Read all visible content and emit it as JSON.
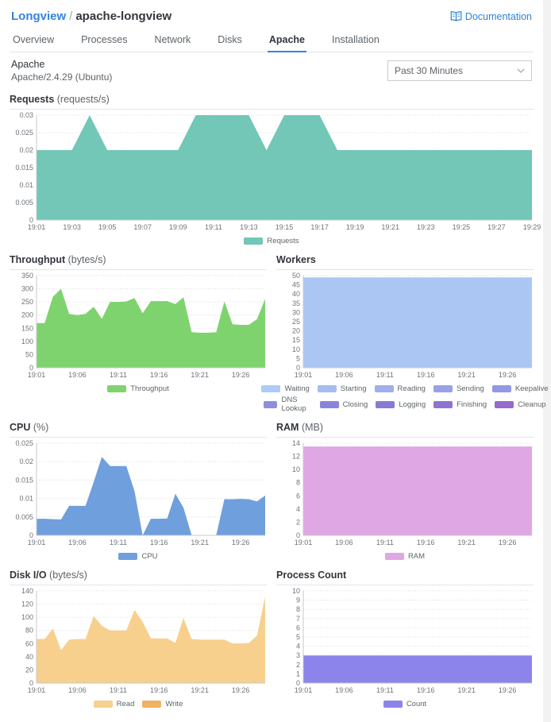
{
  "header": {
    "breadcrumb": {
      "root": "Longview",
      "separator": "/",
      "current": "apache-longview"
    },
    "documentation_label": "Documentation"
  },
  "tabs": [
    {
      "label": "Overview",
      "active": false
    },
    {
      "label": "Processes",
      "active": false
    },
    {
      "label": "Network",
      "active": false
    },
    {
      "label": "Disks",
      "active": false
    },
    {
      "label": "Apache",
      "active": true
    },
    {
      "label": "Installation",
      "active": false
    }
  ],
  "section": {
    "title": "Apache",
    "subtitle": "Apache/2.4.29 (Ubuntu)"
  },
  "time_range": {
    "value": "Past 30 Minutes"
  },
  "colors": {
    "link_blue": "#3683dc",
    "requests": "#72c7b6",
    "throughput": "#7fd36f",
    "workers_waiting": "#abc6f3",
    "cpu": "#6f9fdd",
    "ram": "#dfa7e4",
    "disk_read": "#f7d08d",
    "disk_write": "#f0b261",
    "count": "#8c84ea"
  },
  "chart_data": [
    {
      "type": "area",
      "name": "requests",
      "layout": "full",
      "title": "Requests",
      "unit": "(requests/s)",
      "xlabel": "",
      "ylabel": "requests/s",
      "ylim": [
        0,
        0.03
      ],
      "grid": true,
      "legend_position": "bottom",
      "x_minutes": [
        1,
        2,
        3,
        4,
        5,
        6,
        7,
        8,
        9,
        10,
        11,
        12,
        13,
        14,
        15,
        16,
        17,
        18,
        19,
        20,
        21,
        22,
        23,
        24,
        25,
        26,
        27,
        28,
        29
      ],
      "yticks": [
        {
          "v": 0,
          "label": "0"
        },
        {
          "v": 0.005,
          "label": "0.005"
        },
        {
          "v": 0.01,
          "label": "0.01"
        },
        {
          "v": 0.015,
          "label": "0.015"
        },
        {
          "v": 0.02,
          "label": "0.02"
        },
        {
          "v": 0.025,
          "label": "0.025"
        },
        {
          "v": 0.03,
          "label": "0.03"
        }
      ],
      "xticks": [
        {
          "m": 1,
          "label": "19:01"
        },
        {
          "m": 3,
          "label": "19:03"
        },
        {
          "m": 5,
          "label": "19:05"
        },
        {
          "m": 7,
          "label": "19:07"
        },
        {
          "m": 9,
          "label": "19:09"
        },
        {
          "m": 11,
          "label": "19:11"
        },
        {
          "m": 13,
          "label": "19:13"
        },
        {
          "m": 15,
          "label": "19:15"
        },
        {
          "m": 17,
          "label": "19:17"
        },
        {
          "m": 19,
          "label": "19:19"
        },
        {
          "m": 21,
          "label": "19:21"
        },
        {
          "m": 23,
          "label": "19:23"
        },
        {
          "m": 25,
          "label": "19:25"
        },
        {
          "m": 27,
          "label": "19:27"
        },
        {
          "m": 29,
          "label": "19:29"
        }
      ],
      "series": [
        {
          "name": "Requests",
          "color": "#72c7b6",
          "values": [
            0.02,
            0.02,
            0.02,
            0.03,
            0.02,
            0.02,
            0.02,
            0.02,
            0.02,
            0.03,
            0.03,
            0.03,
            0.03,
            0.02,
            0.03,
            0.03,
            0.03,
            0.02,
            0.02,
            0.02,
            0.02,
            0.02,
            0.02,
            0.02,
            0.02,
            0.02,
            0.02,
            0.02,
            0.02
          ]
        }
      ],
      "legend": [
        [
          {
            "label": "Requests",
            "color": "#72c7b6"
          }
        ]
      ]
    },
    {
      "type": "area",
      "name": "throughput",
      "layout": "half",
      "title": "Throughput",
      "unit": "(bytes/s)",
      "xlabel": "",
      "ylabel": "bytes/s",
      "ylim": [
        0,
        350
      ],
      "grid": true,
      "legend_position": "bottom",
      "x_minutes": [
        1,
        2,
        3,
        4,
        5,
        6,
        7,
        8,
        9,
        10,
        11,
        12,
        13,
        14,
        15,
        16,
        17,
        18,
        19,
        20,
        21,
        22,
        23,
        24,
        25,
        26,
        27,
        28,
        29
      ],
      "yticks": [
        {
          "v": 0,
          "label": "0"
        },
        {
          "v": 50,
          "label": "50"
        },
        {
          "v": 100,
          "label": "100"
        },
        {
          "v": 150,
          "label": "150"
        },
        {
          "v": 200,
          "label": "200"
        },
        {
          "v": 250,
          "label": "250"
        },
        {
          "v": 300,
          "label": "300"
        },
        {
          "v": 350,
          "label": "350"
        }
      ],
      "xticks": [
        {
          "m": 1,
          "label": "19:01"
        },
        {
          "m": 6,
          "label": "19:06"
        },
        {
          "m": 11,
          "label": "19:11"
        },
        {
          "m": 16,
          "label": "19:16"
        },
        {
          "m": 21,
          "label": "19:21"
        },
        {
          "m": 26,
          "label": "19:26"
        }
      ],
      "series": [
        {
          "name": "Throughput",
          "color": "#7fd36f",
          "values": [
            170,
            170,
            270,
            300,
            205,
            200,
            205,
            232,
            186,
            250,
            250,
            252,
            265,
            207,
            253,
            253,
            253,
            242,
            268,
            135,
            133,
            133,
            135,
            252,
            165,
            163,
            163,
            185,
            262
          ]
        }
      ],
      "legend": [
        [
          {
            "label": "Throughput",
            "color": "#7fd36f"
          }
        ]
      ]
    },
    {
      "type": "area",
      "name": "workers",
      "layout": "half",
      "title": "Workers",
      "unit": "",
      "xlabel": "",
      "ylabel": "workers",
      "ylim": [
        0,
        50
      ],
      "grid": true,
      "legend_position": "bottom",
      "x_minutes": [
        1,
        2,
        3,
        4,
        5,
        6,
        7,
        8,
        9,
        10,
        11,
        12,
        13,
        14,
        15,
        16,
        17,
        18,
        19,
        20,
        21,
        22,
        23,
        24,
        25,
        26,
        27,
        28,
        29
      ],
      "yticks": [
        {
          "v": 0,
          "label": "0"
        },
        {
          "v": 5,
          "label": "5"
        },
        {
          "v": 10,
          "label": "10"
        },
        {
          "v": 15,
          "label": "15"
        },
        {
          "v": 20,
          "label": "20"
        },
        {
          "v": 25,
          "label": "25"
        },
        {
          "v": 30,
          "label": "30"
        },
        {
          "v": 35,
          "label": "35"
        },
        {
          "v": 40,
          "label": "40"
        },
        {
          "v": 45,
          "label": "45"
        },
        {
          "v": 50,
          "label": "50"
        }
      ],
      "xticks": [
        {
          "m": 1,
          "label": "19:01"
        },
        {
          "m": 6,
          "label": "19:06"
        },
        {
          "m": 11,
          "label": "19:11"
        },
        {
          "m": 16,
          "label": "19:16"
        },
        {
          "m": 21,
          "label": "19:21"
        },
        {
          "m": 26,
          "label": "19:26"
        }
      ],
      "series": [
        {
          "name": "Waiting",
          "color": "#abc6f3",
          "values": [
            49,
            49,
            49,
            49,
            49,
            49,
            49,
            49,
            49,
            49,
            49,
            49,
            49,
            49,
            49,
            49,
            49,
            49,
            49,
            49,
            49,
            49,
            49,
            49,
            49,
            49,
            49,
            49,
            49
          ]
        }
      ],
      "legend": [
        [
          {
            "label": "Waiting",
            "color": "#aecaf5"
          },
          {
            "label": "Starting",
            "color": "#a6bcf1"
          },
          {
            "label": "Reading",
            "color": "#a0afec"
          },
          {
            "label": "Sending",
            "color": "#99a2e8"
          },
          {
            "label": "Keepalive",
            "color": "#9398e3"
          }
        ],
        [
          {
            "label": "DNS Lookup",
            "color": "#8e8edf"
          },
          {
            "label": "Closing",
            "color": "#8984da"
          },
          {
            "label": "Logging",
            "color": "#867ad6"
          },
          {
            "label": "Finishing",
            "color": "#8d72d2"
          },
          {
            "label": "Cleanup",
            "color": "#9769ce"
          }
        ]
      ]
    },
    {
      "type": "area",
      "name": "cpu",
      "layout": "half",
      "title": "CPU",
      "unit": "(%)",
      "xlabel": "",
      "ylabel": "%",
      "ylim": [
        0,
        0.025
      ],
      "grid": true,
      "legend_position": "bottom",
      "x_minutes": [
        1,
        2,
        3,
        4,
        5,
        6,
        7,
        8,
        9,
        10,
        11,
        12,
        13,
        14,
        15,
        16,
        17,
        18,
        19,
        20,
        21,
        22,
        23,
        24,
        25,
        26,
        27,
        28,
        29
      ],
      "yticks": [
        {
          "v": 0,
          "label": "0"
        },
        {
          "v": 0.005,
          "label": "0.005"
        },
        {
          "v": 0.01,
          "label": "0.01"
        },
        {
          "v": 0.015,
          "label": "0.015"
        },
        {
          "v": 0.02,
          "label": "0.02"
        },
        {
          "v": 0.025,
          "label": "0.025"
        }
      ],
      "xticks": [
        {
          "m": 1,
          "label": "19:01"
        },
        {
          "m": 6,
          "label": "19:06"
        },
        {
          "m": 11,
          "label": "19:11"
        },
        {
          "m": 16,
          "label": "19:16"
        },
        {
          "m": 21,
          "label": "19:21"
        },
        {
          "m": 26,
          "label": "19:26"
        }
      ],
      "series": [
        {
          "name": "CPU",
          "color": "#6f9fdd",
          "values": [
            0.0045,
            0.0045,
            0.0044,
            0.0043,
            0.008,
            0.008,
            0.008,
            0.0145,
            0.0213,
            0.0188,
            0.0188,
            0.0188,
            0.012,
            0,
            0.0045,
            0.0045,
            0.0046,
            0.0113,
            0.0075,
            0,
            0,
            0,
            0,
            0.0098,
            0.0098,
            0.0099,
            0.0098,
            0.0092,
            0.0108
          ]
        }
      ],
      "legend": [
        [
          {
            "label": "CPU",
            "color": "#6f9fdd"
          }
        ]
      ]
    },
    {
      "type": "area",
      "name": "ram",
      "layout": "half",
      "title": "RAM",
      "unit": "(MB)",
      "xlabel": "",
      "ylabel": "MB",
      "ylim": [
        0,
        14
      ],
      "grid": true,
      "legend_position": "bottom",
      "x_minutes": [
        1,
        2,
        3,
        4,
        5,
        6,
        7,
        8,
        9,
        10,
        11,
        12,
        13,
        14,
        15,
        16,
        17,
        18,
        19,
        20,
        21,
        22,
        23,
        24,
        25,
        26,
        27,
        28,
        29
      ],
      "yticks": [
        {
          "v": 0,
          "label": "0"
        },
        {
          "v": 2,
          "label": "2"
        },
        {
          "v": 4,
          "label": "4"
        },
        {
          "v": 6,
          "label": "6"
        },
        {
          "v": 8,
          "label": "8"
        },
        {
          "v": 10,
          "label": "10"
        },
        {
          "v": 12,
          "label": "12"
        },
        {
          "v": 14,
          "label": "14"
        }
      ],
      "xticks": [
        {
          "m": 1,
          "label": "19:01"
        },
        {
          "m": 6,
          "label": "19:06"
        },
        {
          "m": 11,
          "label": "19:11"
        },
        {
          "m": 16,
          "label": "19:16"
        },
        {
          "m": 21,
          "label": "19:21"
        },
        {
          "m": 26,
          "label": "19:26"
        }
      ],
      "series": [
        {
          "name": "RAM",
          "color": "#dfa7e4",
          "values": [
            13.5,
            13.5,
            13.5,
            13.5,
            13.5,
            13.5,
            13.5,
            13.5,
            13.5,
            13.5,
            13.5,
            13.5,
            13.5,
            13.5,
            13.5,
            13.5,
            13.5,
            13.5,
            13.5,
            13.5,
            13.5,
            13.5,
            13.5,
            13.5,
            13.5,
            13.5,
            13.5,
            13.5,
            13.5
          ]
        }
      ],
      "legend": [
        [
          {
            "label": "RAM",
            "color": "#dfa7e4"
          }
        ]
      ]
    },
    {
      "type": "area",
      "name": "disk-io",
      "layout": "half",
      "title": "Disk I/O",
      "unit": "(bytes/s)",
      "xlabel": "",
      "ylabel": "bytes/s",
      "ylim": [
        0,
        140
      ],
      "grid": true,
      "legend_position": "bottom",
      "x_minutes": [
        1,
        2,
        3,
        4,
        5,
        6,
        7,
        8,
        9,
        10,
        11,
        12,
        13,
        14,
        15,
        16,
        17,
        18,
        19,
        20,
        21,
        22,
        23,
        24,
        25,
        26,
        27,
        28,
        29
      ],
      "yticks": [
        {
          "v": 0,
          "label": "0"
        },
        {
          "v": 20,
          "label": "20"
        },
        {
          "v": 40,
          "label": "40"
        },
        {
          "v": 60,
          "label": "60"
        },
        {
          "v": 80,
          "label": "80"
        },
        {
          "v": 100,
          "label": "100"
        },
        {
          "v": 120,
          "label": "120"
        },
        {
          "v": 140,
          "label": "140"
        }
      ],
      "xticks": [
        {
          "m": 1,
          "label": "19:01"
        },
        {
          "m": 6,
          "label": "19:06"
        },
        {
          "m": 11,
          "label": "19:11"
        },
        {
          "m": 16,
          "label": "19:16"
        },
        {
          "m": 21,
          "label": "19:21"
        },
        {
          "m": 26,
          "label": "19:26"
        }
      ],
      "series": [
        {
          "name": "Read",
          "color": "#f7d08d",
          "values": [
            67,
            67,
            83,
            50,
            66,
            67,
            67,
            102,
            87,
            80,
            80,
            80,
            111,
            93,
            68,
            68,
            68,
            61,
            99,
            67,
            66,
            66,
            66,
            66,
            60,
            60,
            61,
            72,
            131
          ]
        },
        {
          "name": "Write",
          "color": "#f0b261",
          "values": [
            0,
            0,
            0,
            0,
            0,
            0,
            0,
            0,
            0,
            0,
            0,
            0,
            0,
            0,
            0,
            0,
            0,
            0,
            0,
            0,
            0,
            0,
            0,
            0,
            0,
            0,
            0,
            0,
            0
          ]
        }
      ],
      "legend": [
        [
          {
            "label": "Read",
            "color": "#f7d08d"
          },
          {
            "label": "Write",
            "color": "#f0b261"
          }
        ]
      ]
    },
    {
      "type": "area",
      "name": "process-count",
      "layout": "half",
      "title": "Process Count",
      "unit": "",
      "xlabel": "",
      "ylabel": "count",
      "ylim": [
        0,
        10
      ],
      "grid": true,
      "legend_position": "bottom",
      "x_minutes": [
        1,
        2,
        3,
        4,
        5,
        6,
        7,
        8,
        9,
        10,
        11,
        12,
        13,
        14,
        15,
        16,
        17,
        18,
        19,
        20,
        21,
        22,
        23,
        24,
        25,
        26,
        27,
        28,
        29
      ],
      "yticks": [
        {
          "v": 0,
          "label": "0"
        },
        {
          "v": 1,
          "label": "1"
        },
        {
          "v": 2,
          "label": "2"
        },
        {
          "v": 3,
          "label": "3"
        },
        {
          "v": 4,
          "label": "4"
        },
        {
          "v": 5,
          "label": "5"
        },
        {
          "v": 6,
          "label": "6"
        },
        {
          "v": 7,
          "label": "7"
        },
        {
          "v": 8,
          "label": "8"
        },
        {
          "v": 9,
          "label": "9"
        },
        {
          "v": 10,
          "label": "10"
        }
      ],
      "xticks": [
        {
          "m": 1,
          "label": "19:01"
        },
        {
          "m": 6,
          "label": "19:06"
        },
        {
          "m": 11,
          "label": "19:11"
        },
        {
          "m": 16,
          "label": "19:16"
        },
        {
          "m": 21,
          "label": "19:21"
        },
        {
          "m": 26,
          "label": "19:26"
        }
      ],
      "series": [
        {
          "name": "Count",
          "color": "#8c84ea",
          "values": [
            3,
            3,
            3,
            3,
            3,
            3,
            3,
            3,
            3,
            3,
            3,
            3,
            3,
            3,
            3,
            3,
            3,
            3,
            3,
            3,
            3,
            3,
            3,
            3,
            3,
            3,
            3,
            3,
            3
          ]
        }
      ],
      "legend": [
        [
          {
            "label": "Count",
            "color": "#8c84ea"
          }
        ]
      ]
    }
  ]
}
